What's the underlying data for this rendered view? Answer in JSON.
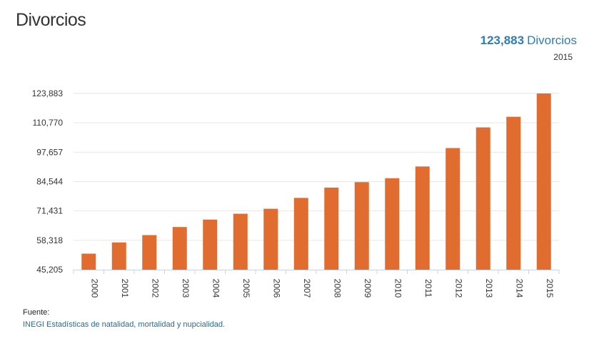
{
  "header": {
    "title": "Divorcios",
    "headline_value": "123,883",
    "headline_unit": "Divorcios",
    "headline_year": "2015"
  },
  "source": {
    "label": "Fuente:",
    "text": "INEGI Estadísticas de natalidad, mortalidad y nupcialidad."
  },
  "colors": {
    "bar": "#e06c30",
    "headline": "#2e7db5",
    "grid": "#e6e6e6"
  },
  "chart_data": {
    "type": "bar",
    "title": "Divorcios",
    "xlabel": "",
    "ylabel": "",
    "categories": [
      "2000",
      "2001",
      "2002",
      "2003",
      "2004",
      "2005",
      "2006",
      "2007",
      "2008",
      "2009",
      "2010",
      "2011",
      "2012",
      "2013",
      "2014",
      "2015"
    ],
    "values": [
      52358,
      57370,
      60641,
      64248,
      67575,
      70184,
      72396,
      77255,
      81851,
      84302,
      86042,
      91285,
      99509,
      108727,
      113478,
      123883
    ],
    "y_ticks": [
      "45,205",
      "58,318",
      "71,431",
      "84,544",
      "97,657",
      "110,770",
      "123,883"
    ],
    "y_tick_values": [
      45205,
      58318,
      71431,
      84544,
      97657,
      110770,
      123883
    ],
    "ylim": [
      45205,
      123883
    ],
    "grid": true,
    "legend": "none"
  }
}
